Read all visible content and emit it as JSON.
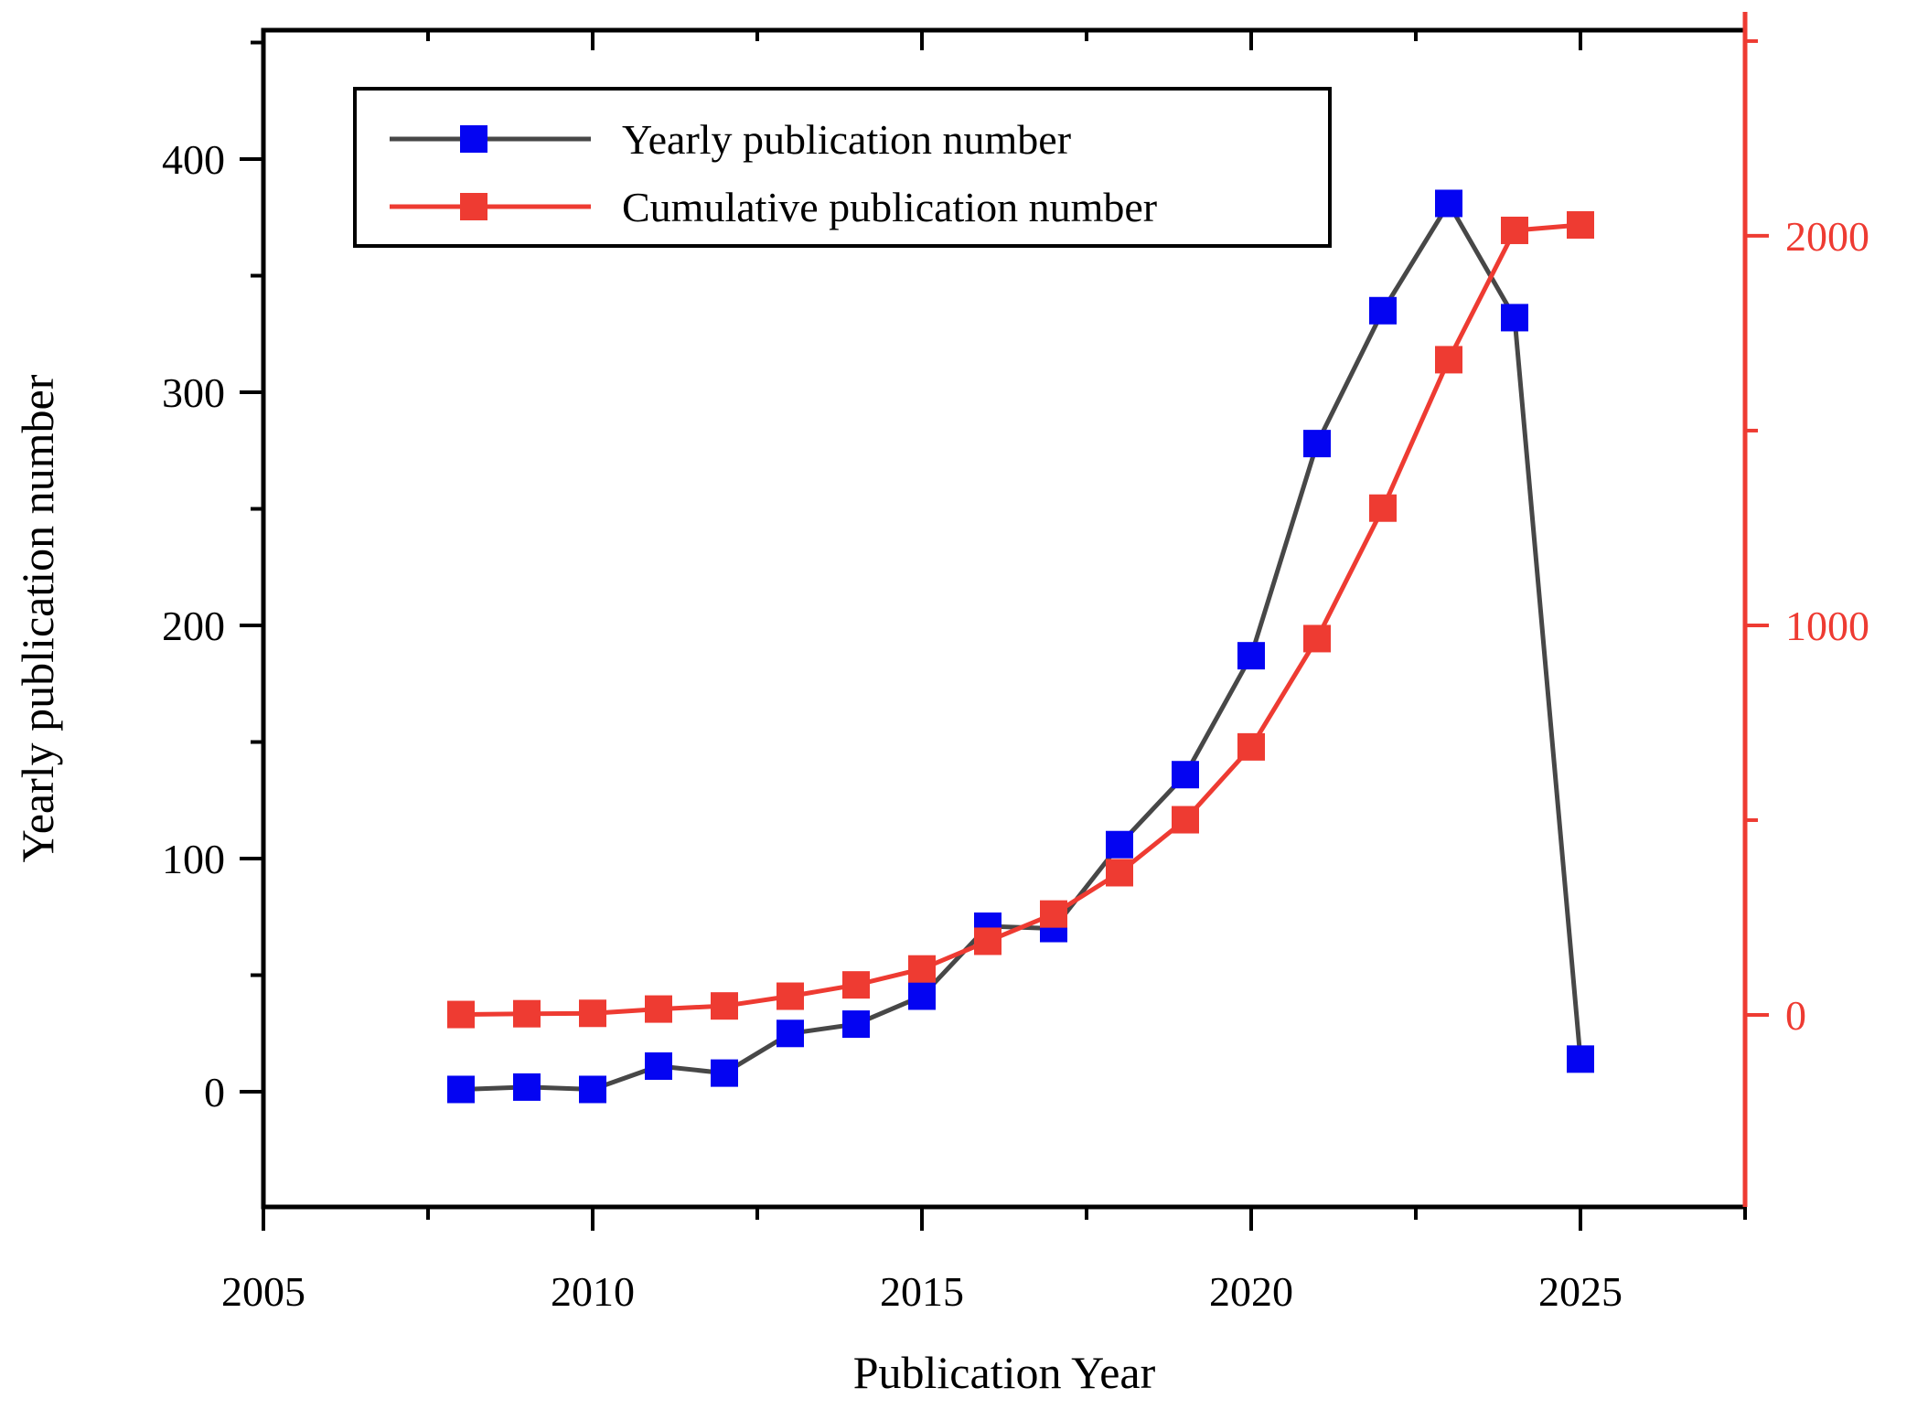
{
  "chart_data": {
    "type": "line",
    "title": "",
    "xlabel": "Publication Year",
    "ylabel_left": "Yearly publication number",
    "ylabel_right": "",
    "x": [
      2008,
      2009,
      2010,
      2011,
      2012,
      2013,
      2014,
      2015,
      2016,
      2017,
      2018,
      2019,
      2020,
      2021,
      2022,
      2023,
      2024,
      2025
    ],
    "series": [
      {
        "name": "Yearly publication number",
        "axis": "left",
        "values": [
          1,
          2,
          1,
          11,
          8,
          25,
          29,
          41,
          71,
          70,
          106,
          136,
          187,
          278,
          335,
          381,
          332,
          14
        ],
        "line_color": "#474747",
        "marker_color": "#0404f2",
        "marker": "square"
      },
      {
        "name": "Cumulative publication number",
        "axis": "right",
        "values": [
          1,
          3,
          4,
          15,
          23,
          48,
          77,
          118,
          189,
          259,
          365,
          501,
          688,
          966,
          1301,
          1682,
          2014,
          2028
        ],
        "line_color": "#ee3b32",
        "marker_color": "#ee3b32",
        "marker": "square"
      }
    ],
    "xlim": [
      2005,
      2027.5
    ],
    "ylim_left": [
      -49.4,
      455.3
    ],
    "ylim_right": [
      -493,
      2528
    ],
    "x_major_ticks": [
      2005,
      2010,
      2015,
      2020,
      2025
    ],
    "x_minor_ticks": [
      2007.5,
      2012.5,
      2017.5,
      2022.5,
      2027.5
    ],
    "yleft_major_ticks": [
      0,
      100,
      200,
      300,
      400
    ],
    "yleft_minor_ticks": [
      50,
      150,
      250,
      350,
      450
    ],
    "yright_major_ticks": [
      0,
      1000,
      2000
    ],
    "yright_minor_ticks": [
      500,
      1500,
      2500
    ],
    "grid": false,
    "legend_position": "top-left-inside"
  },
  "colors": {
    "background": "#ffffff",
    "frame": "#000000",
    "left_axis_title": "#0404f2",
    "right_axis": "#ee3b32",
    "tick_text": "#000000"
  }
}
